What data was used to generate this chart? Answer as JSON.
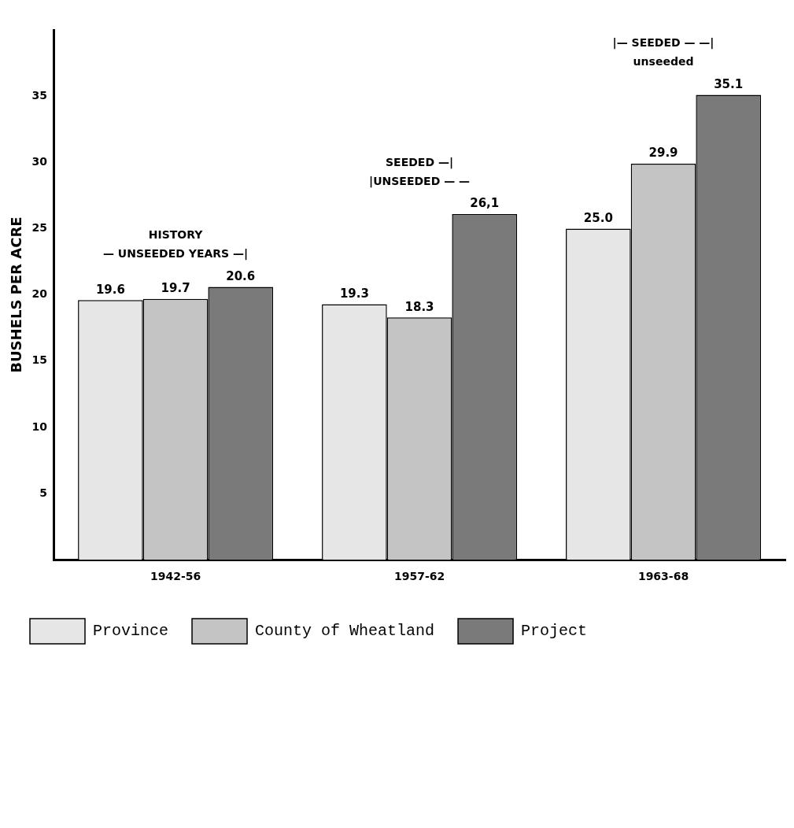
{
  "chart_data": {
    "type": "bar",
    "ylabel": "BUSHELS PER ACRE",
    "categories": [
      "1942-56",
      "1957-62",
      "1963-68"
    ],
    "series": [
      {
        "name": "Province",
        "color": "#e6e6e6",
        "values": [
          19.6,
          19.3,
          25.0
        ],
        "value_labels": [
          "19.6",
          "19.3",
          "25.0"
        ]
      },
      {
        "name": "County of Wheatland",
        "color": "#c4c4c4",
        "values": [
          19.7,
          18.3,
          29.9
        ],
        "value_labels": [
          "19.7",
          "18.3",
          "29.9"
        ]
      },
      {
        "name": "Project",
        "color": "#7a7a7a",
        "values": [
          20.6,
          26.1,
          35.1
        ],
        "value_labels": [
          "20.6",
          "26,1",
          "35.1"
        ]
      }
    ],
    "ylim": [
      0,
      40
    ],
    "yticks": [
      5,
      10,
      15,
      20,
      25,
      30,
      35
    ],
    "grid": false,
    "legend": "bottom",
    "annotations": [
      "HISTORY",
      "— UNSEEDED YEARS —|",
      "SEEDED —|",
      "|UNSEEDED — —",
      "|— SEEDED — —|",
      "unseeded"
    ]
  }
}
